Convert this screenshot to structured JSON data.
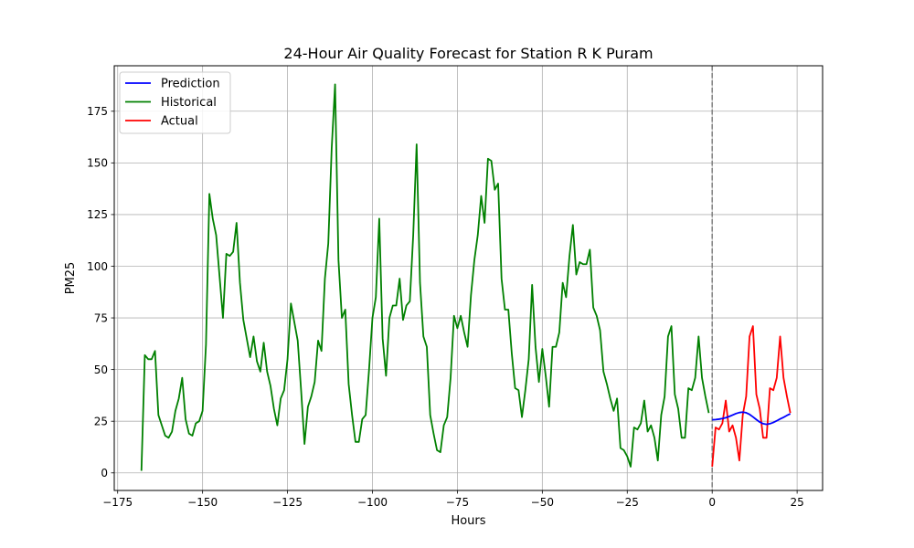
{
  "chart_data": {
    "type": "line",
    "title": "24-Hour Air Quality Forecast for Station R K Puram",
    "xlabel": "Hours",
    "ylabel": "PM25",
    "xlim": [
      -176.0,
      32.5
    ],
    "ylim": [
      -8.5,
      197.0
    ],
    "xticks": [
      -175,
      -150,
      -125,
      -100,
      -75,
      -50,
      -25,
      0,
      25
    ],
    "yticks": [
      0,
      25,
      50,
      75,
      100,
      125,
      150,
      175
    ],
    "grid": true,
    "legend_position": "top-left",
    "vline": {
      "x": 0,
      "style": "dashed",
      "color": "#808080"
    },
    "series": [
      {
        "name": "Prediction",
        "color": "#0000ff",
        "x": [
          0,
          1,
          2,
          3,
          4,
          5,
          6,
          7,
          8,
          9,
          10,
          11,
          12,
          13,
          14,
          15,
          16,
          17,
          18,
          19,
          20,
          21,
          22,
          23
        ],
        "y": [
          25.7,
          25.8,
          26.0,
          26.3,
          26.7,
          27.3,
          28.0,
          28.7,
          29.2,
          29.4,
          29.1,
          28.3,
          27.1,
          25.8,
          24.6,
          23.8,
          23.5,
          23.8,
          24.4,
          25.2,
          26.1,
          26.9,
          27.8,
          28.6
        ]
      },
      {
        "name": "Historical",
        "color": "#008000",
        "x": [
          -168,
          -167,
          -166,
          -165,
          -164,
          -163,
          -162,
          -161,
          -160,
          -159,
          -158,
          -157,
          -156,
          -155,
          -154,
          -153,
          -152,
          -151,
          -150,
          -149,
          -148,
          -147,
          -146,
          -145,
          -144,
          -143,
          -142,
          -141,
          -140,
          -139,
          -138,
          -137,
          -136,
          -135,
          -134,
          -133,
          -132,
          -131,
          -130,
          -129,
          -128,
          -127,
          -126,
          -125,
          -124,
          -123,
          -122,
          -121,
          -120,
          -119,
          -118,
          -117,
          -116,
          -115,
          -114,
          -113,
          -112,
          -111,
          -110,
          -109,
          -108,
          -107,
          -106,
          -105,
          -104,
          -103,
          -102,
          -101,
          -100,
          -99,
          -98,
          -97,
          -96,
          -95,
          -94,
          -93,
          -92,
          -91,
          -90,
          -89,
          -88,
          -87,
          -86,
          -85,
          -84,
          -83,
          -82,
          -81,
          -80,
          -79,
          -78,
          -77,
          -76,
          -75,
          -74,
          -73,
          -72,
          -71,
          -70,
          -69,
          -68,
          -67,
          -66,
          -65,
          -64,
          -63,
          -62,
          -61,
          -60,
          -59,
          -58,
          -57,
          -56,
          -55,
          -54,
          -53,
          -52,
          -51,
          -50,
          -49,
          -48,
          -47,
          -46,
          -45,
          -44,
          -43,
          -42,
          -41,
          -40,
          -39,
          -38,
          -37,
          -36,
          -35,
          -34,
          -33,
          -32,
          -31,
          -30,
          -29,
          -28,
          -27,
          -26,
          -25,
          -24,
          -23,
          -22,
          -21,
          -20,
          -19,
          -18,
          -17,
          -16,
          -15,
          -14,
          -13,
          -12,
          -11,
          -10,
          -9,
          -8,
          -7,
          -6,
          -5,
          -4,
          -3,
          -2,
          -1
        ],
        "y": [
          1,
          57,
          55,
          55,
          59,
          28,
          23,
          18,
          17,
          20,
          30,
          36,
          46,
          26,
          19,
          18,
          24,
          25,
          30,
          62,
          135,
          123,
          115,
          95,
          75,
          106,
          105,
          107,
          121,
          92,
          74,
          65,
          56,
          66,
          54,
          49,
          63,
          49,
          42,
          31,
          23,
          36,
          40,
          55,
          82,
          73,
          64,
          40,
          14,
          32,
          37,
          44,
          64,
          59,
          94,
          111,
          157,
          188,
          103,
          75,
          79,
          43,
          28,
          15,
          15,
          26,
          28,
          50,
          75,
          85,
          123,
          65,
          47,
          75,
          81,
          81,
          94,
          74,
          81,
          83,
          115,
          159,
          92,
          66,
          61,
          28,
          19,
          11,
          10,
          23,
          27,
          46,
          76,
          70,
          76,
          68,
          61,
          86,
          103,
          115,
          134,
          121,
          152,
          151,
          137,
          140,
          94,
          79,
          79,
          58,
          41,
          40,
          27,
          40,
          55,
          91,
          61,
          44,
          60,
          47,
          32,
          61,
          61,
          68,
          92,
          85,
          105,
          120,
          96,
          102,
          101,
          101,
          108,
          80,
          76,
          69,
          49,
          43,
          36,
          30,
          36,
          12,
          11,
          8,
          3,
          22,
          21,
          24,
          35,
          20,
          23,
          17,
          6,
          28,
          37,
          66,
          71,
          38,
          31,
          17,
          17,
          41,
          40,
          46,
          66,
          46,
          37,
          29
        ]
      },
      {
        "name": "Actual",
        "color": "#ff0000",
        "x": [
          0,
          1,
          2,
          3,
          4,
          5,
          6,
          7,
          8,
          9,
          10,
          11,
          12,
          13,
          14,
          15,
          16,
          17,
          18,
          19,
          20,
          21,
          22,
          23
        ],
        "y": [
          3,
          22,
          21,
          24,
          35,
          20,
          23,
          17,
          6,
          28,
          37,
          66,
          71,
          38,
          31,
          17,
          17,
          41,
          40,
          46,
          66,
          46,
          37,
          29
        ]
      }
    ]
  }
}
